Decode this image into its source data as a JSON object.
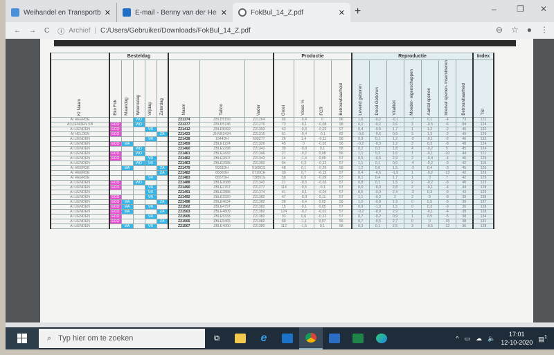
{
  "browser": {
    "tabs": [
      {
        "title": "Weihandel en Transportbedrijf V",
        "icon": "page-icon"
      },
      {
        "title": "E-mail - Benny van der Heijden -",
        "icon": "outlook-icon"
      },
      {
        "title": "FokBul_14_Z.pdf",
        "icon": "globe-icon",
        "active": true
      }
    ],
    "new_tab": "+",
    "window_controls": {
      "minimize": "–",
      "maximize": "❐",
      "close": "✕"
    },
    "nav": {
      "back": "←",
      "forward": "→",
      "reload": "C"
    },
    "address": {
      "info": "ⓘ",
      "label": "Archief",
      "sep": "|",
      "url": "C:/Users/Gebruiker/Downloads/FokBul_14_Z.pdf"
    },
    "right_icons": {
      "zoom": "⊖",
      "star": "☆",
      "profile": "●",
      "menu": "⋮"
    }
  },
  "table": {
    "groups": {
      "besteldag": "Besteldag",
      "productie": "Productie",
      "reproductie": "Reproductie",
      "index": "Index"
    },
    "headers": {
      "ki_naam": "KI Naam",
      "eko_fok": "Eko Fok",
      "maandag": "Maandag",
      "woensdag": "Woensdag",
      "vrijdag": "Vrijdag",
      "zaterdag": "Zaterdag",
      "naam": "Naam",
      "tattoo": "Tattoo",
      "vader": "Vader",
      "groei": "Groei",
      "vlees": "Vlees %",
      "fcr": "FCR",
      "betr_p": "Betrouwbaarheid",
      "levend": "Levend geboren",
      "dood": "Dood Geboren",
      "vitaliteit": "Vitaliteit",
      "moeder": "Moeder- eigenschappen",
      "spenen": "Aantal spenen",
      "interval": "Interval spenen- insemineren",
      "betr_r": "Betrouwbaarheid",
      "tsi": "TSI"
    },
    "rows": [
      {
        "ki": "AI HEERDE",
        "eco": "",
        "ma": "",
        "wo": "WO",
        "vr": "",
        "za": "",
        "naam": "Z21374",
        "tattoo": "ZBLD5156",
        "vader": "Z21264",
        "groei": "65",
        "vlees": "-0,4",
        "fcr": "0",
        "bp": "96",
        "lev": "1,6",
        "dood": "-0,2",
        "vit": "-0,1",
        "moe": "-7",
        "spe": "0,1",
        "int": "-4",
        "br": "73",
        "tsi": "121"
      },
      {
        "ki": "AI LIENDEN SB",
        "eco": "ECO",
        "ma": "",
        "wo": "WO",
        "vr": "",
        "za": "",
        "naam": "Z21377",
        "tattoo": "ZBLD5746",
        "vader": "Z21270",
        "groei": "73",
        "vlees": "-0,1",
        "fcr": "-0,08",
        "bp": "98",
        "lev": "0,2",
        "dood": "-0,2",
        "vit": "2,6",
        "moe": "3",
        "spe": "-0,5",
        "int": "-6",
        "br": "84",
        "tsi": "124"
      },
      {
        "ki": "AI LIENDEN",
        "eco": "ECO",
        "ma": "",
        "wo": "",
        "vr": "VR",
        "za": "",
        "naam": "Z21412",
        "tattoo": "ZBLD8392",
        "vader": "Z21303",
        "groei": "43",
        "vlees": "-0,8",
        "fcr": "-0,02",
        "bp": "97",
        "lev": "0,4",
        "dood": "-0,5",
        "vit": "1,7",
        "moe": "1",
        "spe": "1,2",
        "int": "-2",
        "br": "46",
        "tsi": "132"
      },
      {
        "ki": "AI HELDEN",
        "eco": "ECO",
        "ma": "",
        "wo": "",
        "vr": "",
        "za": "ZA",
        "naam": "Z21423",
        "tattoo": "ZHVB3434",
        "vader": "Z21310",
        "groei": "61",
        "vlees": "-0,4",
        "fcr": "-0,1",
        "bp": "82",
        "lev": "-0,6",
        "dood": "-0,6",
        "vit": "0,9",
        "moe": "3",
        "spe": "1,3",
        "int": "-2",
        "br": "49",
        "tsi": "129"
      },
      {
        "ki": "AI LIENDEN",
        "eco": "",
        "ma": "",
        "wo": "",
        "vr": "VR",
        "za": "",
        "naam": "Z21438",
        "tattoo": "1944DH",
        "vader": "609Z77",
        "groei": "26",
        "vlees": "1,4",
        "fcr": "-0,11",
        "bp": "58",
        "lev": "0,9",
        "dood": "0,1",
        "vit": "1,2",
        "moe": "-2",
        "spe": "-0,1",
        "int": "-2",
        "br": "46",
        "tsi": "133"
      },
      {
        "ki": "AI LIENDEN",
        "eco": "ECO",
        "ma": "MA",
        "wo": "",
        "vr": "",
        "za": "",
        "naam": "Z21459",
        "tattoo": "ZBLE1224",
        "vader": "Z21326",
        "groei": "45",
        "vlees": "0",
        "fcr": "-0,02",
        "bp": "56",
        "lev": "-0,2",
        "dood": "-0,3",
        "vit": "1,2",
        "moe": "3",
        "spe": "0,3",
        "int": "-8",
        "br": "48",
        "tsi": "124"
      },
      {
        "ki": "AI LIENDEN",
        "eco": "",
        "ma": "",
        "wo": "WO",
        "vr": "",
        "za": "",
        "naam": "Z21460",
        "tattoo": "ZBLE2298",
        "vader": "Z21342",
        "groei": "39",
        "vlees": "-0,8",
        "fcr": "0,1",
        "bp": "58",
        "lev": "0,2",
        "dood": "0,3",
        "vit": "1,8",
        "moe": "4",
        "spe": "-0,2",
        "int": "5",
        "br": "45",
        "tsi": "124"
      },
      {
        "ki": "AI LIENDEN",
        "eco": "ECO",
        "ma": "",
        "wo": "WO",
        "vr": "",
        "za": "",
        "naam": "Z21461",
        "tattoo": "ZBLE2432",
        "vader": "Z21346",
        "groei": "27",
        "vlees": "-0,2",
        "fcr": "0,08",
        "bp": "56",
        "lev": "1,1",
        "dood": "0,2",
        "vit": "1,6",
        "moe": "1",
        "spe": "-0,1",
        "int": "-10",
        "br": "44",
        "tsi": "121"
      },
      {
        "ki": "AI LIENDEN",
        "eco": "ECO",
        "ma": "",
        "wo": "",
        "vr": "VR",
        "za": "",
        "naam": "Z21462",
        "tattoo": "ZBLE2607",
        "vader": "Z21343",
        "groei": "14",
        "vlees": "-1,4",
        "fcr": "0,05",
        "bp": "57",
        "lev": "0,5",
        "dood": "-0,5",
        "vit": "2,9",
        "moe": "2",
        "spe": "-0,4",
        "int": "-4",
        "br": "46",
        "tsi": "129"
      },
      {
        "ki": "AI LIENDEN",
        "eco": "",
        "ma": "",
        "wo": "WO",
        "vr": "VR",
        "za": "",
        "naam": "Z21463",
        "tattoo": "ZBLE2685",
        "vader": "Z21360",
        "groei": "64",
        "vlees": "0,3",
        "fcr": "-0,12",
        "bp": "57",
        "lev": "1,1",
        "dood": "0,1",
        "vit": "0,5",
        "moe": "-4",
        "spe": "-0,2",
        "int": "-3",
        "br": "42",
        "tsi": "119"
      },
      {
        "ki": "AI HEERDE",
        "eco": "",
        "ma": "MA",
        "wo": "",
        "vr": "",
        "za": "ZA",
        "naam": "Z21479",
        "tattoo": "5933DH",
        "vader": "5169CG",
        "groei": "48",
        "vlees": "0,1",
        "fcr": "-0,26",
        "bp": "58",
        "lev": "1,2",
        "dood": "0,6",
        "vit": "1,5",
        "moe": "-3",
        "spe": "0,4",
        "int": "-3",
        "br": "45",
        "tsi": "126"
      },
      {
        "ki": "AI HEERDE",
        "eco": "",
        "ma": "",
        "wo": "",
        "vr": "",
        "za": "ZA",
        "naam": "Z21482",
        "tattoo": "6500DH",
        "vader": "0719CH",
        "groei": "39",
        "vlees": "0,7",
        "fcr": "-0,15",
        "bp": "57",
        "lev": "0,4",
        "dood": "-0,6",
        "vit": "-1,9",
        "moe": "1",
        "spe": "-0,2",
        "int": "-13",
        "br": "42",
        "tsi": "129"
      },
      {
        "ki": "AI HEERDE",
        "eco": "",
        "ma": "",
        "wo": "",
        "vr": "VR",
        "za": "",
        "naam": "Z21483",
        "tattoo": "6557DH",
        "vader": "7385CG",
        "groei": "58",
        "vlees": "0,9",
        "fcr": "-0,09",
        "bp": "57",
        "lev": "0,1",
        "dood": "0,4",
        "vit": "1,7",
        "moe": "1",
        "spe": "0",
        "int": "7",
        "br": "42",
        "tsi": "129"
      },
      {
        "ki": "AI LIENDEN",
        "eco": "ECO",
        "ma": "",
        "wo": "WO",
        "vr": "",
        "za": "",
        "naam": "Z21488",
        "tattoo": "ZBLE2088",
        "vader": "Z21342",
        "groei": "21",
        "vlees": "-0,5",
        "fcr": "-0,02",
        "bp": "57",
        "lev": "0,8",
        "dood": "0,1",
        "vit": "1,5",
        "moe": "2",
        "spe": "-0,2",
        "int": "-6",
        "br": "40",
        "tsi": "123"
      },
      {
        "ki": "AI LIENDEN",
        "eco": "ECO",
        "ma": "",
        "wo": "",
        "vr": "VR",
        "za": "",
        "naam": "Z21490",
        "tattoo": "ZBLE2767",
        "vader": "Z21277",
        "groei": "114",
        "vlees": "-0,5",
        "fcr": "-0,1",
        "bp": "57",
        "lev": "0,0",
        "dood": "-0,3",
        "vit": "2,8",
        "moe": "2",
        "spe": "-0,1",
        "int": "-4",
        "br": "44",
        "tsi": "128"
      },
      {
        "ki": "AI LIENDEN",
        "eco": "",
        "ma": "",
        "wo": "",
        "vr": "VR",
        "za": "",
        "naam": "Z21491",
        "tattoo": "ZBLE2886",
        "vader": "Z21374",
        "groei": "41",
        "vlees": "-0,1",
        "fcr": "-0,04",
        "bp": "57",
        "lev": "0,5",
        "dood": "-0,3",
        "vit": "2,4",
        "moe": "-3",
        "spe": "0,3",
        "int": "-9",
        "br": "43",
        "tsi": "129"
      },
      {
        "ki": "AI LIENDEN",
        "eco": "ECO",
        "ma": "",
        "wo": "",
        "vr": "VR",
        "za": "",
        "naam": "Z21492",
        "tattoo": "ZBLE3320",
        "vader": "Z21382",
        "groei": "47",
        "vlees": "-0,9",
        "fcr": "0,11",
        "bp": "57",
        "lev": "1,1",
        "dood": "-0,3",
        "vit": "2",
        "moe": "2",
        "spe": "0",
        "int": "-9",
        "br": "39",
        "tsi": "138"
      },
      {
        "ki": "AI LIENDEN",
        "eco": "ECO",
        "ma": "MA",
        "wo": "",
        "vr": "",
        "za": "ZA",
        "naam": "Z21498",
        "tattoo": "ZBLE4634",
        "vader": "Z21382",
        "groei": "28",
        "vlees": "-0,4",
        "fcr": "0,02",
        "bp": "58",
        "lev": "1,0",
        "dood": "-0,8",
        "vit": "1,9",
        "moe": "0",
        "spe": "0,5",
        "int": "-9",
        "br": "39",
        "tsi": "137"
      },
      {
        "ki": "AI LIENDEN",
        "eco": "ECO",
        "ma": "MA",
        "wo": "",
        "vr": "VR",
        "za": "",
        "naam": "Z21502",
        "tattoo": "ZBLE4797",
        "vader": "Z21382",
        "groei": "15",
        "vlees": "-0,1",
        "fcr": "0,05",
        "bp": "57",
        "lev": "0,9",
        "dood": "-1,0",
        "vit": "1,5",
        "moe": "0",
        "spe": "0,3",
        "int": "-9",
        "br": "36",
        "tsi": "128"
      },
      {
        "ki": "AI LIENDEN",
        "eco": "ECO",
        "ma": "MA",
        "wo": "",
        "vr": "",
        "za": "ZA",
        "naam": "Z21503",
        "tattoo": "ZBLE4809",
        "vader": "Z21382",
        "groei": "124",
        "vlees": "-0,7",
        "fcr": "-0,01",
        "bp": "57",
        "lev": "-0,2",
        "dood": "-0,9",
        "vit": "2,9",
        "moe": "1",
        "spe": "-0,1",
        "int": "-4",
        "br": "38",
        "tsi": "128"
      },
      {
        "ki": "AI LIENDEN",
        "eco": "ECO",
        "ma": "",
        "wo": "",
        "vr": "VR",
        "za": "",
        "naam": "Z21505",
        "tattoo": "ZBLE5333",
        "vader": "Z21382",
        "groei": "33",
        "vlees": "0,6",
        "fcr": "-0,12",
        "bp": "57",
        "lev": "0,7",
        "dood": "-0,2",
        "vit": "0,9",
        "moe": "1",
        "spe": "0,5",
        "int": "-5",
        "br": "38",
        "tsi": "134"
      },
      {
        "ki": "AI LIENDEN",
        "eco": "ECO",
        "ma": "",
        "wo": "",
        "vr": "",
        "za": "ZA",
        "naam": "Z21506",
        "tattoo": "ZBLE5465",
        "vader": "Z21382",
        "groei": "68",
        "vlees": "-1,1",
        "fcr": "0,07",
        "bp": "56",
        "lev": "0,7",
        "dood": "-0,5",
        "vit": "2,7",
        "moe": "0",
        "spe": "0",
        "int": "-15",
        "br": "38",
        "tsi": "131"
      },
      {
        "ki": "AI LIENDEN",
        "eco": "",
        "ma": "MA",
        "wo": "",
        "vr": "VR",
        "za": "",
        "naam": "Z21507",
        "tattoo": "ZBLE4000",
        "vader": "Z21380",
        "groei": "112",
        "vlees": "-1,5",
        "fcr": "0,1",
        "bp": "58",
        "lev": "0,3",
        "dood": "0,1",
        "vit": "2,5",
        "moe": "3",
        "spe": "-0,5",
        "int": "-12",
        "br": "36",
        "tsi": "128"
      }
    ]
  },
  "taskbar": {
    "search_placeholder": "Typ hier om te zoeken",
    "apps": [
      "task-view",
      "file-explorer",
      "internet-explorer",
      "outlook",
      "chrome",
      "word",
      "excel",
      "edge"
    ],
    "time": "17:01",
    "date": "12-10-2020",
    "notification_count": "1"
  },
  "colors": {
    "eco": "#e84fd0",
    "day": "#39b6e8",
    "reproductie_bg": "#e3eef2"
  }
}
